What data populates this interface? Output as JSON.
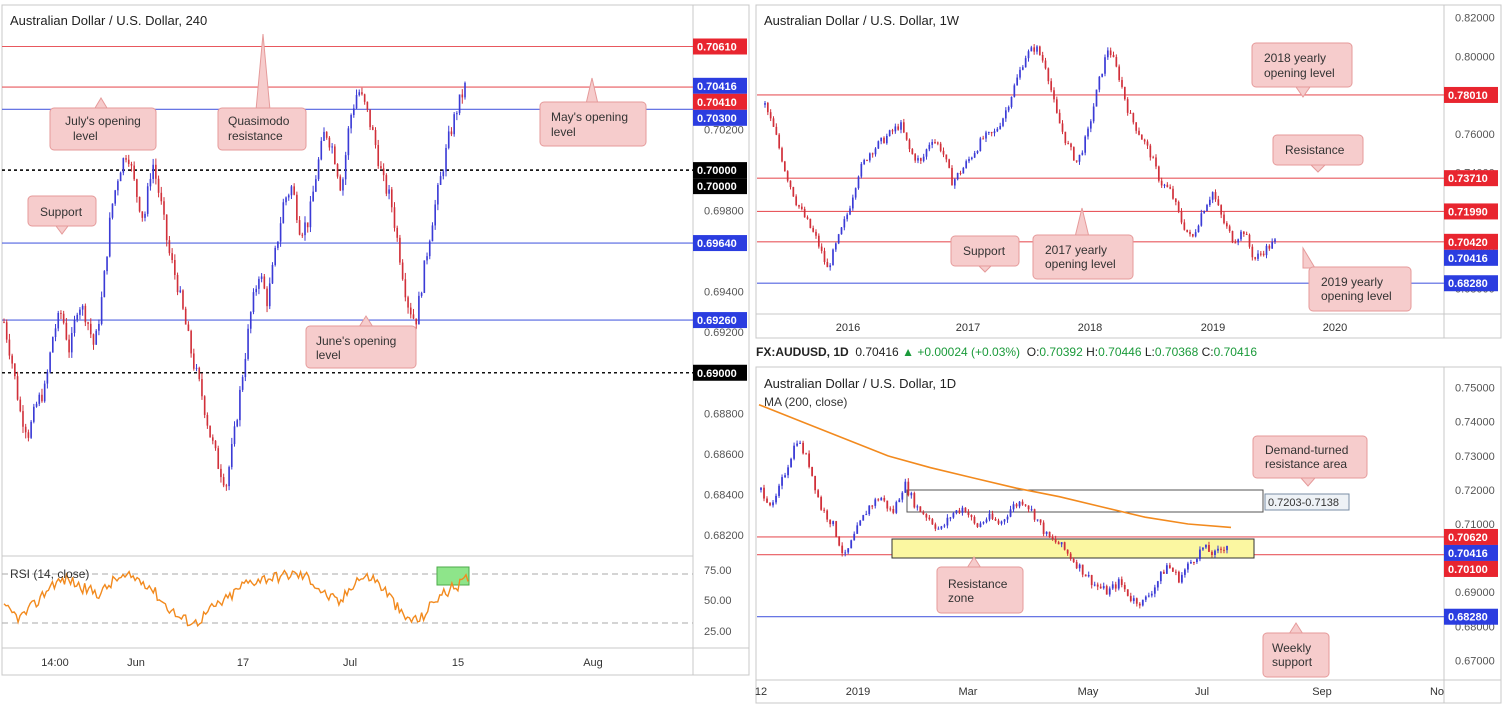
{
  "ticker": {
    "symbol": "FX:AUDUSD, 1D",
    "last": "0.70416",
    "change": "+0.00024 (+0.03%)",
    "o_label": "O:",
    "o": "0.70392",
    "h_label": "H:",
    "h": "0.70446",
    "l_label": "L:",
    "l": "0.70368",
    "c_label": "C:",
    "c": "0.70416"
  },
  "colors": {
    "up": "#3b3bd6",
    "down": "#d1303a",
    "red_line": "#e8585e",
    "blue_line": "#5263e0",
    "ma": "#f28a1e",
    "rsi": "#f28a1e",
    "zone": "#fbf7a1",
    "rsi_box": "#8ee58a",
    "label_bg": "#f6cccc"
  },
  "chart_data": [
    {
      "id": "h4",
      "type": "candlestick",
      "title": "Australian Dollar / U.S. Dollar, 240",
      "x_ticks": [
        "14:00",
        "Jun",
        "17",
        "Jul",
        "15",
        "Aug"
      ],
      "y_ticks": [
        "0.70200",
        "0.69800",
        "0.69400",
        "0.69200",
        "0.68800",
        "0.68600",
        "0.68400",
        "0.68200"
      ],
      "ylim": [
        0.6815,
        0.708
      ],
      "close_path": [
        0.6925,
        0.6905,
        0.688,
        0.687,
        0.6885,
        0.6892,
        0.692,
        0.693,
        0.691,
        0.6935,
        0.6928,
        0.6912,
        0.694,
        0.698,
        0.7,
        0.701,
        0.699,
        0.6975,
        0.7005,
        0.6985,
        0.696,
        0.6945,
        0.6925,
        0.6905,
        0.689,
        0.687,
        0.6855,
        0.6845,
        0.687,
        0.69,
        0.693,
        0.695,
        0.6935,
        0.696,
        0.6985,
        0.6992,
        0.697,
        0.6975,
        0.7,
        0.702,
        0.701,
        0.699,
        0.7025,
        0.704,
        0.703,
        0.7015,
        0.6995,
        0.6985,
        0.696,
        0.6935,
        0.6925,
        0.695,
        0.6975,
        0.6995,
        0.7015,
        0.703,
        0.7041
      ],
      "levels": [
        {
          "value": 0.7061,
          "label": "0.70610",
          "kind": "red"
        },
        {
          "value": 0.70416,
          "label": "0.70416",
          "kind": "blue",
          "solid": true
        },
        {
          "value": 0.7041,
          "label": "0.70410",
          "kind": "red"
        },
        {
          "value": 0.703,
          "label": "0.70300",
          "kind": "blue"
        },
        {
          "value": 0.7,
          "label": "0.70000",
          "kind": "black"
        },
        {
          "value": 0.7,
          "label": "0.70000",
          "kind": "black"
        },
        {
          "value": 0.6964,
          "label": "0.69640",
          "kind": "blue"
        },
        {
          "value": 0.6926,
          "label": "0.69260",
          "kind": "blue"
        },
        {
          "value": 0.69,
          "label": "0.69000",
          "kind": "black"
        }
      ],
      "rsi": {
        "label": "RSI (14, close)",
        "ticks": [
          "75.00",
          "50.00",
          "25.00"
        ]
      },
      "annotations": [
        {
          "lines": [
            "July's opening",
            "level"
          ]
        },
        {
          "lines": [
            "Quasimodo",
            "resistance"
          ]
        },
        {
          "lines": [
            "May's opening",
            "level"
          ]
        },
        {
          "lines": [
            "Support"
          ]
        },
        {
          "lines": [
            "June's opening",
            "level"
          ]
        }
      ]
    },
    {
      "id": "w1",
      "type": "candlestick",
      "title": "Australian Dollar / U.S. Dollar, 1W",
      "x_ticks": [
        "2016",
        "2017",
        "2018",
        "2019",
        "2020"
      ],
      "y_ticks": [
        "0.82000",
        "0.80000",
        "0.76000",
        "0.74000",
        "0.70000",
        "0.68000"
      ],
      "ylim": [
        0.67,
        0.824
      ],
      "close_path": [
        0.775,
        0.76,
        0.74,
        0.725,
        0.715,
        0.705,
        0.69,
        0.705,
        0.72,
        0.74,
        0.75,
        0.755,
        0.76,
        0.765,
        0.75,
        0.745,
        0.758,
        0.752,
        0.735,
        0.742,
        0.75,
        0.758,
        0.76,
        0.77,
        0.785,
        0.8,
        0.805,
        0.795,
        0.77,
        0.755,
        0.745,
        0.76,
        0.785,
        0.805,
        0.79,
        0.77,
        0.76,
        0.75,
        0.735,
        0.73,
        0.715,
        0.705,
        0.72,
        0.73,
        0.715,
        0.705,
        0.71,
        0.695,
        0.7,
        0.7041
      ],
      "levels": [
        {
          "value": 0.7801,
          "label": "0.78010",
          "kind": "red"
        },
        {
          "value": 0.7371,
          "label": "0.73710",
          "kind": "red"
        },
        {
          "value": 0.7199,
          "label": "0.71990",
          "kind": "red"
        },
        {
          "value": 0.70416,
          "label": "0.70416",
          "kind": "blue",
          "solid": true
        },
        {
          "value": 0.7042,
          "label": "0.70420",
          "kind": "red"
        },
        {
          "value": 0.6828,
          "label": "0.68280",
          "kind": "blue"
        }
      ],
      "annotations": [
        {
          "lines": [
            "2018 yearly",
            "opening level"
          ]
        },
        {
          "lines": [
            "Resistance"
          ]
        },
        {
          "lines": [
            "Support"
          ]
        },
        {
          "lines": [
            "2017 yearly",
            "opening level"
          ]
        },
        {
          "lines": [
            "2019 yearly",
            "opening level"
          ]
        }
      ]
    },
    {
      "id": "d1",
      "type": "candlestick",
      "title": "Australian Dollar / U.S. Dollar, 1D",
      "ma_label": "MA (200, close)",
      "x_ticks": [
        "12",
        "2019",
        "Mar",
        "May",
        "Jul",
        "Sep",
        "No"
      ],
      "y_ticks": [
        "0.75000",
        "0.74000",
        "0.73000",
        "0.72000",
        "0.71000",
        "0.69000",
        "0.68000",
        "0.67000"
      ],
      "ylim": [
        0.666,
        0.754
      ],
      "close_path": [
        0.72,
        0.715,
        0.725,
        0.735,
        0.728,
        0.715,
        0.71,
        0.7,
        0.708,
        0.715,
        0.718,
        0.713,
        0.722,
        0.715,
        0.712,
        0.708,
        0.713,
        0.715,
        0.709,
        0.712,
        0.71,
        0.715,
        0.717,
        0.712,
        0.706,
        0.704,
        0.7,
        0.696,
        0.692,
        0.69,
        0.693,
        0.688,
        0.687,
        0.692,
        0.698,
        0.694,
        0.699,
        0.703,
        0.701,
        0.7041
      ],
      "ma_path": [
        0.745,
        0.74,
        0.735,
        0.73,
        0.7265,
        0.7235,
        0.7205,
        0.718,
        0.715,
        0.712,
        0.71,
        0.709
      ],
      "zone_label": "0.7203-0.7138",
      "levels": [
        {
          "value": 0.7062,
          "label": "0.70620",
          "kind": "red"
        },
        {
          "value": 0.70416,
          "label": "0.70416",
          "kind": "blue",
          "solid": true
        },
        {
          "value": 0.701,
          "label": "0.70100",
          "kind": "red"
        },
        {
          "value": 0.6828,
          "label": "0.68280",
          "kind": "blue"
        }
      ],
      "annotations": [
        {
          "lines": [
            "Demand-turned",
            "resistance area"
          ]
        },
        {
          "lines": [
            "Resistance",
            "zone"
          ]
        },
        {
          "lines": [
            "Weekly",
            "support"
          ]
        }
      ]
    }
  ]
}
